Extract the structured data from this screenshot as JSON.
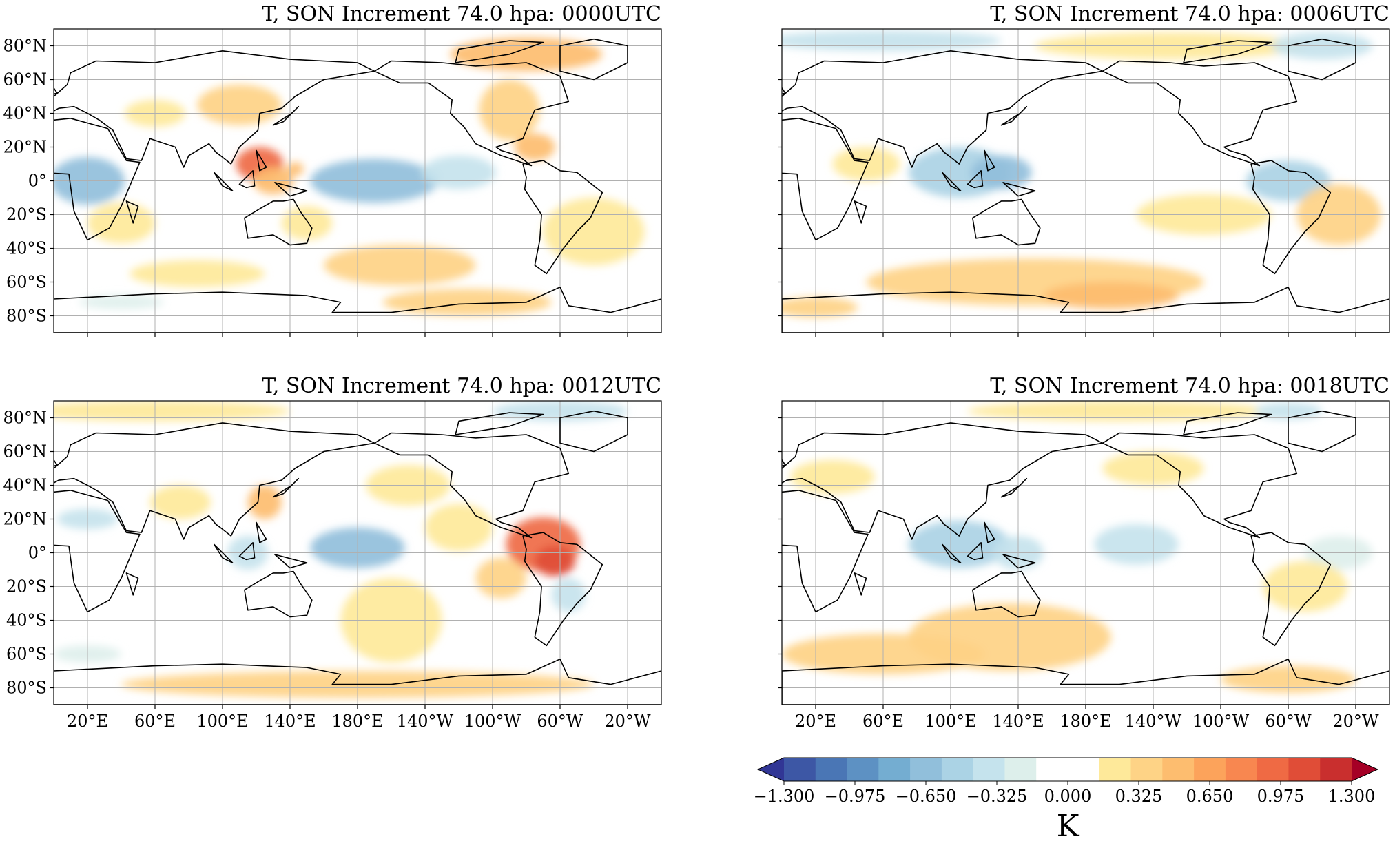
{
  "panels": [
    {
      "title": "T, SON Increment 74.0 hpa: 0000UTC",
      "show_lat_labels": true,
      "show_lon_labels": false,
      "blobs": [
        {
          "lon": 20,
          "lat": 0,
          "rx": 22,
          "ry": 14,
          "v": -0.55
        },
        {
          "lon": 40,
          "lat": -25,
          "rx": 20,
          "ry": 12,
          "v": 0.22
        },
        {
          "lon": 60,
          "lat": 40,
          "rx": 18,
          "ry": 8,
          "v": 0.2
        },
        {
          "lon": 110,
          "lat": 45,
          "rx": 25,
          "ry": 12,
          "v": 0.35
        },
        {
          "lon": 122,
          "lat": 10,
          "rx": 14,
          "ry": 10,
          "v": 0.85
        },
        {
          "lon": 130,
          "lat": 0,
          "rx": 12,
          "ry": 8,
          "v": 0.4
        },
        {
          "lon": 143,
          "lat": 7,
          "rx": 5,
          "ry": 4,
          "v": 0.45
        },
        {
          "lon": 190,
          "lat": 0,
          "rx": 38,
          "ry": 13,
          "v": -0.6
        },
        {
          "lon": 240,
          "lat": 5,
          "rx": 22,
          "ry": 10,
          "v": -0.35
        },
        {
          "lon": 270,
          "lat": 42,
          "rx": 18,
          "ry": 18,
          "v": 0.35
        },
        {
          "lon": 285,
          "lat": 20,
          "rx": 12,
          "ry": 8,
          "v": 0.45
        },
        {
          "lon": 280,
          "lat": 75,
          "rx": 45,
          "ry": 10,
          "v": 0.5
        },
        {
          "lon": 205,
          "lat": -50,
          "rx": 45,
          "ry": 12,
          "v": 0.35
        },
        {
          "lon": 245,
          "lat": -72,
          "rx": 50,
          "ry": 8,
          "v": 0.3
        },
        {
          "lon": 320,
          "lat": -30,
          "rx": 30,
          "ry": 20,
          "v": 0.2
        },
        {
          "lon": 85,
          "lat": -55,
          "rx": 40,
          "ry": 8,
          "v": 0.18
        },
        {
          "lon": 40,
          "lat": -72,
          "rx": 25,
          "ry": 4,
          "v": -0.22
        },
        {
          "lon": 150,
          "lat": -25,
          "rx": 15,
          "ry": 10,
          "v": 0.15
        }
      ]
    },
    {
      "title": "T, SON Increment 74.0 hpa: 0006UTC",
      "show_lat_labels": false,
      "show_lon_labels": false,
      "blobs": [
        {
          "lon": 60,
          "lat": 83,
          "rx": 70,
          "ry": 6,
          "v": -0.3
        },
        {
          "lon": 230,
          "lat": 80,
          "rx": 80,
          "ry": 8,
          "v": 0.25
        },
        {
          "lon": 320,
          "lat": 80,
          "rx": 30,
          "ry": 8,
          "v": -0.3
        },
        {
          "lon": 105,
          "lat": 5,
          "rx": 30,
          "ry": 15,
          "v": -0.5
        },
        {
          "lon": 130,
          "lat": 5,
          "rx": 18,
          "ry": 10,
          "v": -0.55
        },
        {
          "lon": 300,
          "lat": 0,
          "rx": 25,
          "ry": 12,
          "v": -0.4
        },
        {
          "lon": 330,
          "lat": -20,
          "rx": 25,
          "ry": 18,
          "v": 0.3
        },
        {
          "lon": 250,
          "lat": -20,
          "rx": 40,
          "ry": 12,
          "v": 0.15
        },
        {
          "lon": 150,
          "lat": -60,
          "rx": 100,
          "ry": 14,
          "v": 0.35
        },
        {
          "lon": 195,
          "lat": -68,
          "rx": 40,
          "ry": 8,
          "v": 0.5
        },
        {
          "lon": 50,
          "lat": 10,
          "rx": 20,
          "ry": 10,
          "v": 0.15
        },
        {
          "lon": 200,
          "lat": 30,
          "rx": 40,
          "ry": 10,
          "v": 0.12
        },
        {
          "lon": 20,
          "lat": -75,
          "rx": 25,
          "ry": 6,
          "v": 0.3
        }
      ]
    },
    {
      "title": "T, SON Increment 74.0 hpa: 0012UTC",
      "show_lat_labels": true,
      "show_lon_labels": true,
      "blobs": [
        {
          "lon": 60,
          "lat": 84,
          "rx": 80,
          "ry": 6,
          "v": 0.25
        },
        {
          "lon": 300,
          "lat": 84,
          "rx": 40,
          "ry": 6,
          "v": -0.3
        },
        {
          "lon": 20,
          "lat": 20,
          "rx": 18,
          "ry": 6,
          "v": -0.3
        },
        {
          "lon": 75,
          "lat": 30,
          "rx": 18,
          "ry": 10,
          "v": 0.2
        },
        {
          "lon": 125,
          "lat": 30,
          "rx": 10,
          "ry": 10,
          "v": 0.4
        },
        {
          "lon": 115,
          "lat": 0,
          "rx": 12,
          "ry": 10,
          "v": -0.35
        },
        {
          "lon": 180,
          "lat": 3,
          "rx": 28,
          "ry": 12,
          "v": -0.6
        },
        {
          "lon": 210,
          "lat": 40,
          "rx": 25,
          "ry": 12,
          "v": 0.2
        },
        {
          "lon": 240,
          "lat": 15,
          "rx": 20,
          "ry": 14,
          "v": 0.25
        },
        {
          "lon": 290,
          "lat": 5,
          "rx": 22,
          "ry": 16,
          "v": 0.85
        },
        {
          "lon": 297,
          "lat": -5,
          "rx": 12,
          "ry": 9,
          "v": 1.0
        },
        {
          "lon": 305,
          "lat": -25,
          "rx": 10,
          "ry": 10,
          "v": -0.3
        },
        {
          "lon": 265,
          "lat": -15,
          "rx": 15,
          "ry": 12,
          "v": 0.35
        },
        {
          "lon": 200,
          "lat": -40,
          "rx": 30,
          "ry": 25,
          "v": 0.25
        },
        {
          "lon": 180,
          "lat": -78,
          "rx": 140,
          "ry": 8,
          "v": 0.3
        },
        {
          "lon": 20,
          "lat": -60,
          "rx": 20,
          "ry": 5,
          "v": -0.2
        }
      ]
    },
    {
      "title": "T, SON Increment 74.0 hpa: 0018UTC",
      "show_lat_labels": false,
      "show_lon_labels": true,
      "blobs": [
        {
          "lon": 200,
          "lat": 84,
          "rx": 90,
          "ry": 6,
          "v": 0.25
        },
        {
          "lon": 300,
          "lat": 84,
          "rx": 20,
          "ry": 5,
          "v": -0.3
        },
        {
          "lon": 30,
          "lat": 45,
          "rx": 25,
          "ry": 10,
          "v": 0.2
        },
        {
          "lon": 105,
          "lat": 5,
          "rx": 30,
          "ry": 14,
          "v": -0.5
        },
        {
          "lon": 140,
          "lat": 0,
          "rx": 15,
          "ry": 10,
          "v": -0.35
        },
        {
          "lon": 210,
          "lat": 5,
          "rx": 25,
          "ry": 12,
          "v": -0.3
        },
        {
          "lon": 330,
          "lat": 0,
          "rx": 20,
          "ry": 10,
          "v": -0.25
        },
        {
          "lon": 135,
          "lat": -50,
          "rx": 60,
          "ry": 20,
          "v": 0.3
        },
        {
          "lon": 60,
          "lat": -60,
          "rx": 60,
          "ry": 12,
          "v": 0.3
        },
        {
          "lon": 300,
          "lat": -75,
          "rx": 40,
          "ry": 8,
          "v": 0.3
        },
        {
          "lon": 310,
          "lat": -20,
          "rx": 25,
          "ry": 15,
          "v": 0.2
        },
        {
          "lon": 220,
          "lat": 50,
          "rx": 30,
          "ry": 10,
          "v": 0.15
        }
      ]
    }
  ],
  "lat_ticks": [
    {
      "value": 80,
      "label": "80°N"
    },
    {
      "value": 60,
      "label": "60°N"
    },
    {
      "value": 40,
      "label": "40°N"
    },
    {
      "value": 20,
      "label": "20°N"
    },
    {
      "value": 0,
      "label": "0°"
    },
    {
      "value": -20,
      "label": "20°S"
    },
    {
      "value": -40,
      "label": "40°S"
    },
    {
      "value": -60,
      "label": "60°S"
    },
    {
      "value": -80,
      "label": "80°S"
    }
  ],
  "lon_ticks": [
    {
      "value": 20,
      "label": "20°E"
    },
    {
      "value": 60,
      "label": "60°E"
    },
    {
      "value": 100,
      "label": "100°E"
    },
    {
      "value": 140,
      "label": "140°E"
    },
    {
      "value": 180,
      "label": "180°E"
    },
    {
      "value": 220,
      "label": "140°W"
    },
    {
      "value": 260,
      "label": "100°W"
    },
    {
      "value": 300,
      "label": "60°W"
    },
    {
      "value": 340,
      "label": "20°W"
    }
  ],
  "lon_range": [
    0,
    360
  ],
  "lat_range": [
    -90,
    90
  ],
  "colorbar": {
    "unit_label": "K",
    "min": -1.3,
    "max": 1.3,
    "tick_labels": [
      "−1.300",
      "−0.975",
      "−0.650",
      "−0.325",
      "0.000",
      "0.325",
      "0.650",
      "0.975",
      "1.300"
    ],
    "colors": [
      "#313695",
      "#3d57a5",
      "#4a76b5",
      "#5d91c3",
      "#74add1",
      "#91bfdb",
      "#abd3e5",
      "#c5e3ed",
      "#ddefeb",
      "#ffffff",
      "#ffffff",
      "#fee99a",
      "#fed386",
      "#fdbd6f",
      "#fca35b",
      "#f88750",
      "#ef6a44",
      "#e04d37",
      "#c92f2e",
      "#a50026"
    ]
  }
}
